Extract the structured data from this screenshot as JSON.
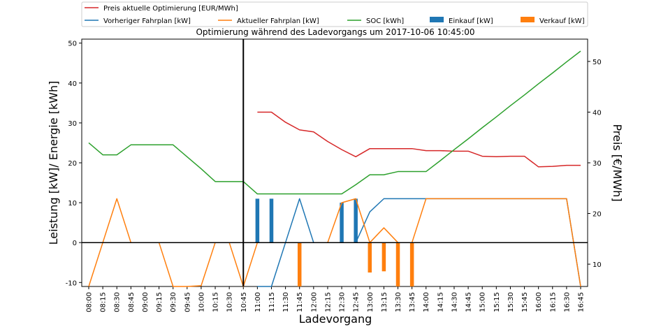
{
  "chart_data": {
    "type": "line",
    "title": "Optimierung während des Ladevorgangs um 2017-10-06 10:45:00",
    "xlabel": "Ladevorgang",
    "ylabel": "Leistung [kW]/ Energie [kWh]",
    "y2label": "Preis [€/MWh]",
    "ylim": [
      -11,
      51
    ],
    "y2lim": [
      5.6,
      54.4
    ],
    "yticks": [
      -10,
      0,
      10,
      20,
      30,
      40,
      50
    ],
    "y2ticks": [
      10,
      20,
      30,
      40,
      50
    ],
    "grid": false,
    "legend_position": "top",
    "now_marker": "10:45",
    "categories": [
      "08:00",
      "08:15",
      "08:30",
      "08:45",
      "09:00",
      "09:15",
      "09:30",
      "09:45",
      "10:00",
      "10:15",
      "10:30",
      "10:45",
      "11:00",
      "11:15",
      "11:30",
      "11:45",
      "12:00",
      "12:15",
      "12:30",
      "12:45",
      "13:00",
      "13:15",
      "13:30",
      "13:45",
      "14:00",
      "14:15",
      "14:30",
      "14:45",
      "15:00",
      "15:15",
      "15:30",
      "15:45",
      "16:00",
      "16:15",
      "16:30",
      "16:45"
    ],
    "series": [
      {
        "name": "Preis aktuelle Optimierung [EUR/MWh]",
        "kind": "line",
        "axis": "right",
        "color": "#d62728",
        "values": [
          null,
          null,
          null,
          null,
          null,
          null,
          null,
          null,
          null,
          null,
          null,
          null,
          40.0,
          40.0,
          38.0,
          36.5,
          36.1,
          34.2,
          32.6,
          31.2,
          32.8,
          32.8,
          32.8,
          32.8,
          32.4,
          32.4,
          32.3,
          32.3,
          31.3,
          31.2,
          31.3,
          31.3,
          29.2,
          29.3,
          29.5,
          29.5
        ]
      },
      {
        "name": "Vorheriger Fahrplan [kW]",
        "kind": "line",
        "axis": "left",
        "color": "#1f77b4",
        "values": [
          null,
          null,
          null,
          null,
          null,
          null,
          null,
          null,
          null,
          null,
          null,
          null,
          -11,
          -11,
          0,
          11,
          0,
          0,
          0,
          0,
          7.7,
          11,
          11,
          11,
          11,
          11,
          11,
          11,
          11,
          11,
          11,
          11,
          11,
          11,
          11,
          -11
        ]
      },
      {
        "name": "Aktueller Fahrplan [kW]",
        "kind": "line",
        "axis": "left",
        "color": "#ff7f0e",
        "values": [
          -11,
          0,
          11,
          0,
          0,
          0,
          -11,
          -11,
          -10.8,
          0,
          0,
          -11,
          0,
          0,
          0,
          0,
          0,
          0,
          10,
          11,
          0,
          3.7,
          0,
          0,
          11,
          11,
          11,
          11,
          11,
          11,
          11,
          11,
          11,
          11,
          11,
          -11
        ]
      },
      {
        "name": "SOC [kWh]",
        "kind": "line",
        "axis": "left",
        "color": "#2ca02c",
        "values": [
          25,
          22,
          22,
          24.5,
          24.5,
          24.5,
          24.5,
          21.5,
          18.5,
          15.3,
          15.3,
          15.3,
          12.2,
          12.2,
          12.2,
          12.2,
          12.2,
          12.2,
          12.2,
          14.5,
          17,
          17,
          17.8,
          17.8,
          17.8,
          20.5,
          23.3,
          26,
          28.8,
          31.5,
          34.3,
          37,
          39.8,
          42.5,
          45.3,
          48
        ]
      },
      {
        "name": "Einkauf [kW]",
        "kind": "bar",
        "axis": "left",
        "color": "#1f77b4",
        "values": [
          0,
          0,
          0,
          0,
          0,
          0,
          0,
          0,
          0,
          0,
          0,
          0,
          11,
          11,
          0,
          0,
          0,
          0,
          10,
          11,
          0,
          0,
          0,
          0,
          0,
          0,
          0,
          0,
          0,
          0,
          0,
          0,
          0,
          0,
          0,
          0
        ]
      },
      {
        "name": "Verkauf [kW]",
        "kind": "bar",
        "axis": "left",
        "color": "#ff7f0e",
        "values": [
          0,
          0,
          0,
          0,
          0,
          0,
          0,
          0,
          0,
          0,
          0,
          0,
          0,
          0,
          0,
          -11,
          0,
          0,
          0,
          0,
          -7.5,
          -7.2,
          -11,
          -11,
          0,
          0,
          0,
          0,
          0,
          0,
          0,
          0,
          0,
          0,
          0,
          0
        ]
      }
    ]
  }
}
